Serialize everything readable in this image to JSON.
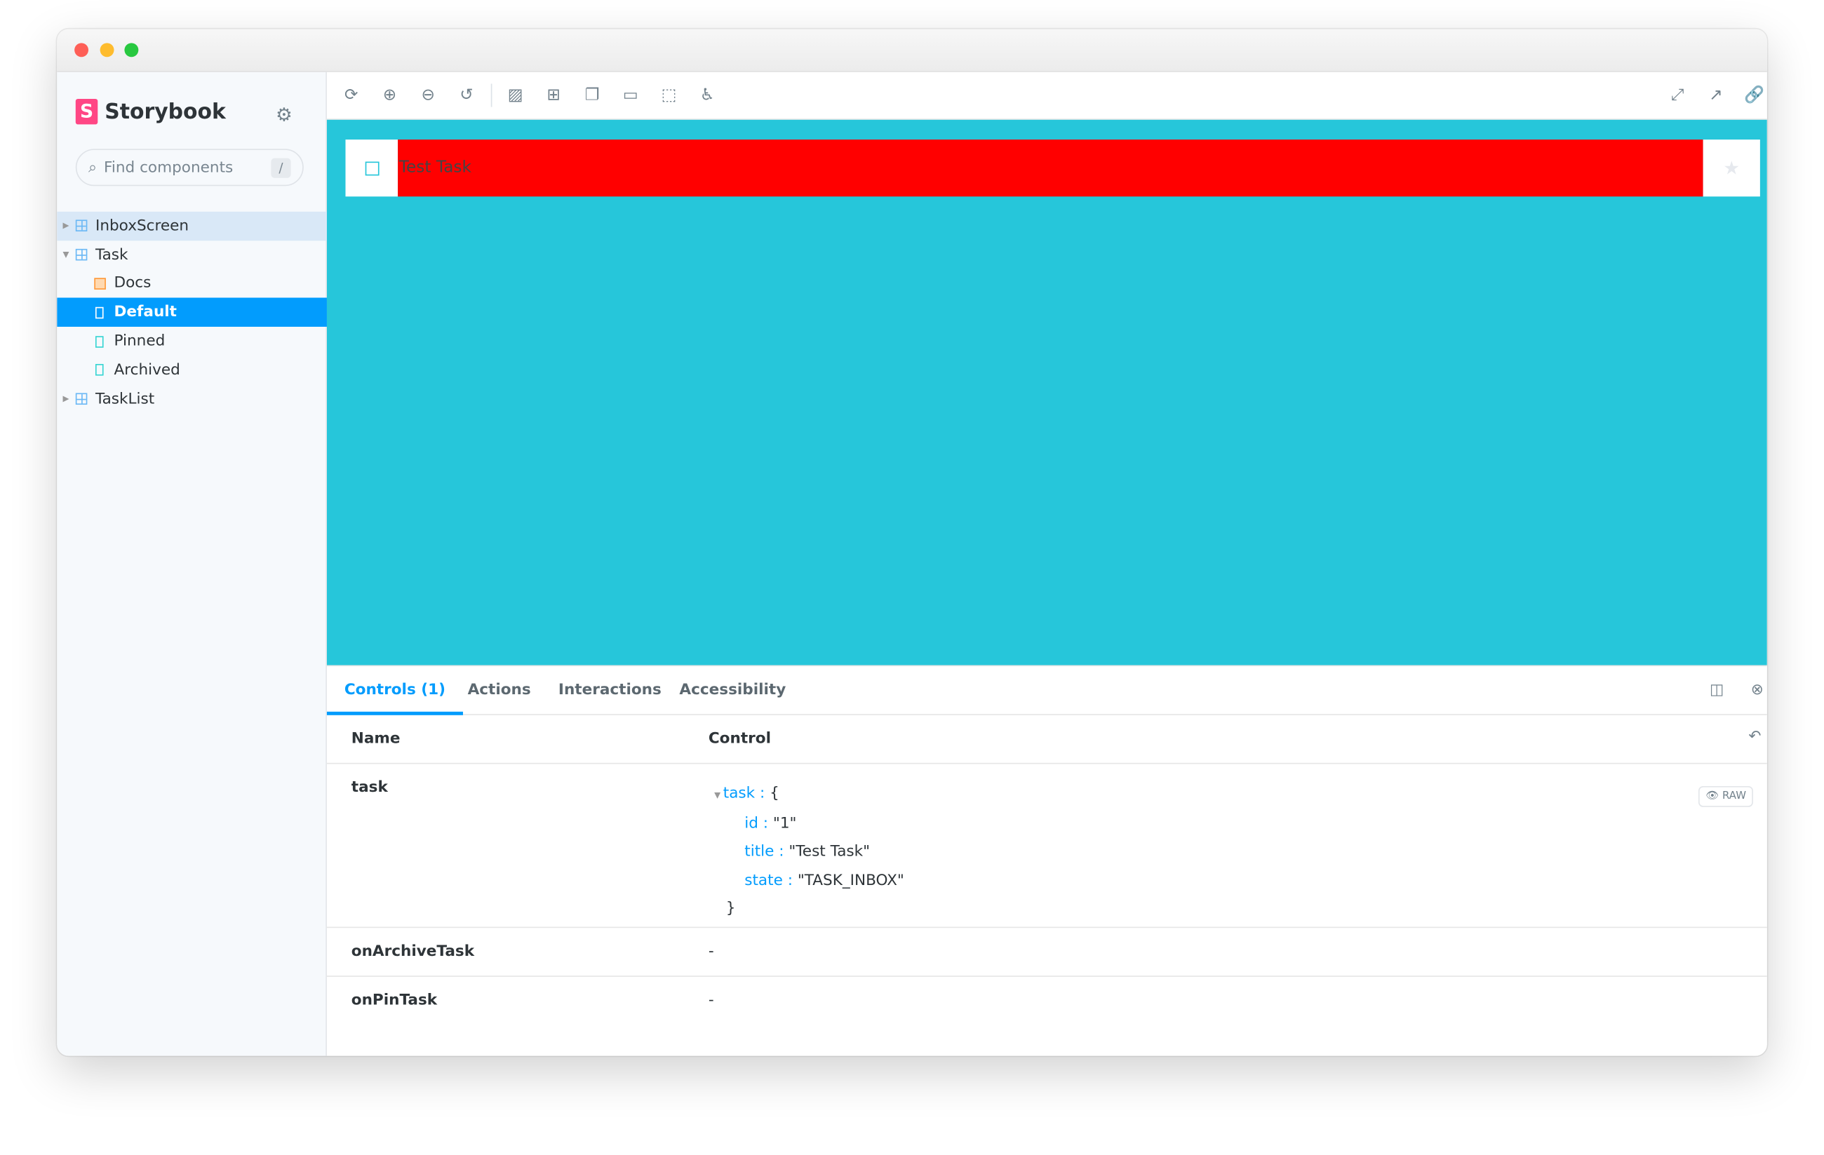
{
  "window": {
    "lights": [
      "#fe5f57",
      "#febc2e",
      "#28c840"
    ]
  },
  "sidebar": {
    "brand": "Storybook",
    "brand_badge": "S",
    "search": {
      "placeholder": "Find components",
      "shortcut": "/"
    },
    "items": [
      {
        "label": "InboxScreen",
        "type": "component",
        "expanded": false
      },
      {
        "label": "Task",
        "type": "component",
        "expanded": true
      },
      {
        "label": "Docs",
        "type": "docs"
      },
      {
        "label": "Default",
        "type": "story",
        "selected": true
      },
      {
        "label": "Pinned",
        "type": "story"
      },
      {
        "label": "Archived",
        "type": "story"
      },
      {
        "label": "TaskList",
        "type": "component",
        "expanded": false
      }
    ]
  },
  "toolbar": {
    "icons": [
      "sync-icon",
      "zoom-in-icon",
      "zoom-out-icon",
      "zoom-reset-icon",
      "background-icon",
      "grid-icon",
      "outline-icon",
      "measure-icon",
      "viewport-icon",
      "accessibility-icon"
    ],
    "right_icons": [
      "fullscreen-icon",
      "open-new-tab-icon",
      "link-icon"
    ]
  },
  "preview": {
    "task_title": "Test Task",
    "bg": "#26c6da",
    "title_bg": "#ff0000"
  },
  "panel": {
    "tabs": [
      "Controls (1)",
      "Actions",
      "Interactions",
      "Accessibility"
    ],
    "columns": {
      "name": "Name",
      "control": "Control"
    },
    "rows": [
      {
        "name": "task",
        "json": {
          "root": "task",
          "open": "{",
          "close": "}",
          "fields": [
            {
              "key": "id",
              "value": "\"1\""
            },
            {
              "key": "title",
              "value": "\"Test Task\""
            },
            {
              "key": "state",
              "value": "\"TASK_INBOX\""
            }
          ]
        },
        "raw_label": "RAW"
      },
      {
        "name": "onArchiveTask",
        "value": "-"
      },
      {
        "name": "onPinTask",
        "value": "-"
      }
    ]
  },
  "colors": {
    "accent": "#029cfd",
    "brand": "#ff4785"
  }
}
